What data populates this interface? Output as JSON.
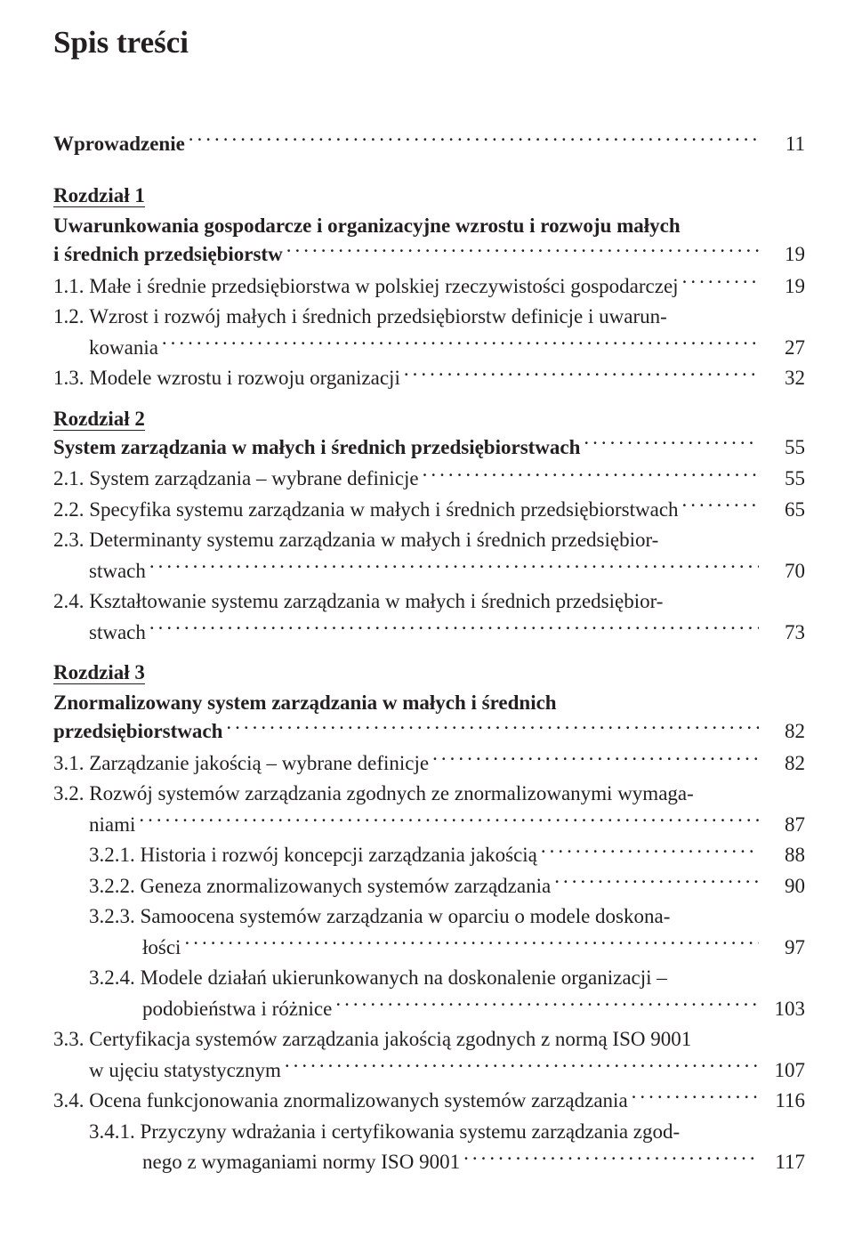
{
  "doc_title": "Spis treści",
  "entries": [
    {
      "kind": "intro",
      "text": "Wprowadzenie",
      "page": "11",
      "bold": true
    },
    {
      "kind": "chap-head",
      "text": "Rozdział 1"
    },
    {
      "kind": "chap-title",
      "lines": [
        "Uwarunkowania gospodarcze i organizacyjne  wzrostu i rozwoju małych",
        "i średnich przedsiębiorstw"
      ],
      "page": "19",
      "bold": true
    },
    {
      "kind": "l1",
      "num": "1.1.",
      "text": "Małe i średnie przedsiębiorstwa w polskiej rzeczywistości gospodarczej",
      "tail": "",
      "page": "19",
      "indent": 1
    },
    {
      "kind": "l1-multi",
      "num": "1.2.",
      "first": "Wzrost i rozwój małych i średnich przedsiębiorstw definicje i uwarun-",
      "lastLabel": "kowania",
      "page": "27"
    },
    {
      "kind": "l1",
      "num": "1.3.",
      "text": "Modele wzrostu i rozwoju organizacji",
      "page": "32"
    },
    {
      "kind": "chap-head",
      "text": "Rozdział 2"
    },
    {
      "kind": "chap-title",
      "lines": [
        "System zarządzania w małych i średnich przedsiębiorstwach"
      ],
      "page": "55",
      "bold": true
    },
    {
      "kind": "l1",
      "num": "2.1.",
      "text": "System zarządzania – wybrane definicje",
      "page": "55"
    },
    {
      "kind": "l1",
      "num": "2.2.",
      "text": "Specyfika systemu zarządzania w małych i średnich przedsiębiorstwach",
      "tail": "",
      "page": "65"
    },
    {
      "kind": "l1-multi",
      "num": "2.3.",
      "first": "Determinanty systemu zarządzania w małych i średnich przedsiębior-",
      "lastLabel": "stwach",
      "page": "70"
    },
    {
      "kind": "l1-multi",
      "num": "2.4.",
      "first": "Kształtowanie systemu zarządzania w małych i średnich przedsiębior-",
      "lastLabel": "stwach",
      "page": "73"
    },
    {
      "kind": "chap-head",
      "text": "Rozdział 3"
    },
    {
      "kind": "chap-title-plain",
      "lines": [
        "Znormalizowany system zarządzania w małych i średnich",
        "przedsiębiorstwach"
      ],
      "page": "82",
      "bold": true
    },
    {
      "kind": "l1",
      "num": "3.1.",
      "text": "Zarządzanie jakością – wybrane definicje",
      "page": "82"
    },
    {
      "kind": "l1-multi",
      "num": "3.2.",
      "first": "Rozwój systemów zarządzania zgodnych ze znormalizowanymi wymaga-",
      "lastLabel": "niami",
      "page": "87"
    },
    {
      "kind": "l2",
      "num": "3.2.1.",
      "text": "Historia i rozwój koncepcji zarządzania jakością",
      "page": "88"
    },
    {
      "kind": "l2",
      "num": "3.2.2.",
      "text": "Geneza znormalizowanych systemów zarządzania",
      "page": "90"
    },
    {
      "kind": "l2-multi",
      "num": "3.2.3.",
      "first": "Samoocena systemów zarządzania w oparciu o modele doskona-",
      "lastLabel": "łości",
      "page": "97"
    },
    {
      "kind": "l2-multi",
      "num": "3.2.4.",
      "first": "Modele działań ukierunkowanych na doskonalenie organizacji –",
      "lastLabel": "podobieństwa i różnice",
      "page": "103"
    },
    {
      "kind": "l1-multi",
      "num": "3.3.",
      "first": "Certyfikacja systemów zarządzania jakością zgodnych z normą ISO 9001",
      "lastLabel": "w ujęciu statystycznym",
      "page": "107"
    },
    {
      "kind": "l1",
      "num": "3.4.",
      "text": "Ocena funkcjonowania znormalizowanych systemów zarządzania",
      "page": "116"
    },
    {
      "kind": "l2-multi",
      "num": "3.4.1.",
      "first": "Przyczyny wdrażania i certyfikowania systemu zarządzania zgod-",
      "lastLabel": "nego z wymaganiami normy ISO 9001",
      "page": "117"
    }
  ]
}
